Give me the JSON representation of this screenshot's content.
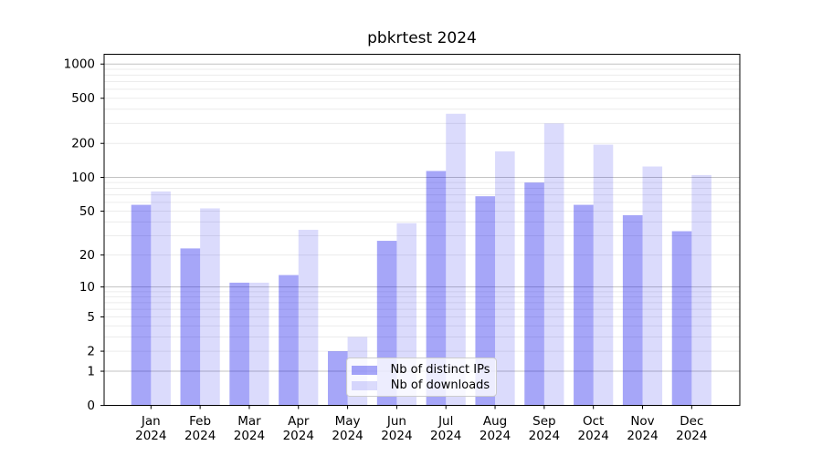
{
  "chart_data": {
    "type": "bar",
    "title": "pbkrtest 2024",
    "categories": [
      "Jan 2024",
      "Feb 2024",
      "Mar 2024",
      "Apr 2024",
      "May 2024",
      "Jun 2024",
      "Jul 2024",
      "Aug 2024",
      "Sep 2024",
      "Oct 2024",
      "Nov 2024",
      "Dec 2024"
    ],
    "series": [
      {
        "name": "Nb of distinct IPs",
        "color": "rgba(0,0,235,0.35)",
        "color_hex_on_white": "#a6a6f8",
        "values": [
          57,
          23,
          11,
          13,
          2,
          27,
          114,
          68,
          90,
          57,
          46,
          33
        ]
      },
      {
        "name": "Nb of downloads",
        "color": "rgba(0,0,235,0.14)",
        "color_hex_on_white": "#dcdcf9",
        "values": [
          75,
          53,
          11,
          34,
          3,
          39,
          365,
          170,
          300,
          195,
          125,
          105
        ]
      }
    ],
    "xlabel": "",
    "ylabel": "",
    "yticks": [
      0,
      1,
      2,
      5,
      10,
      20,
      50,
      100,
      200,
      500,
      1000
    ],
    "ylim": [
      0,
      1200
    ],
    "scale": "log1p",
    "grid": "both",
    "grid_major_color": "#c3c3c3",
    "grid_minor_color": "#ececec",
    "axis_color": "#000000",
    "legend_position": "lower-center-inside"
  }
}
